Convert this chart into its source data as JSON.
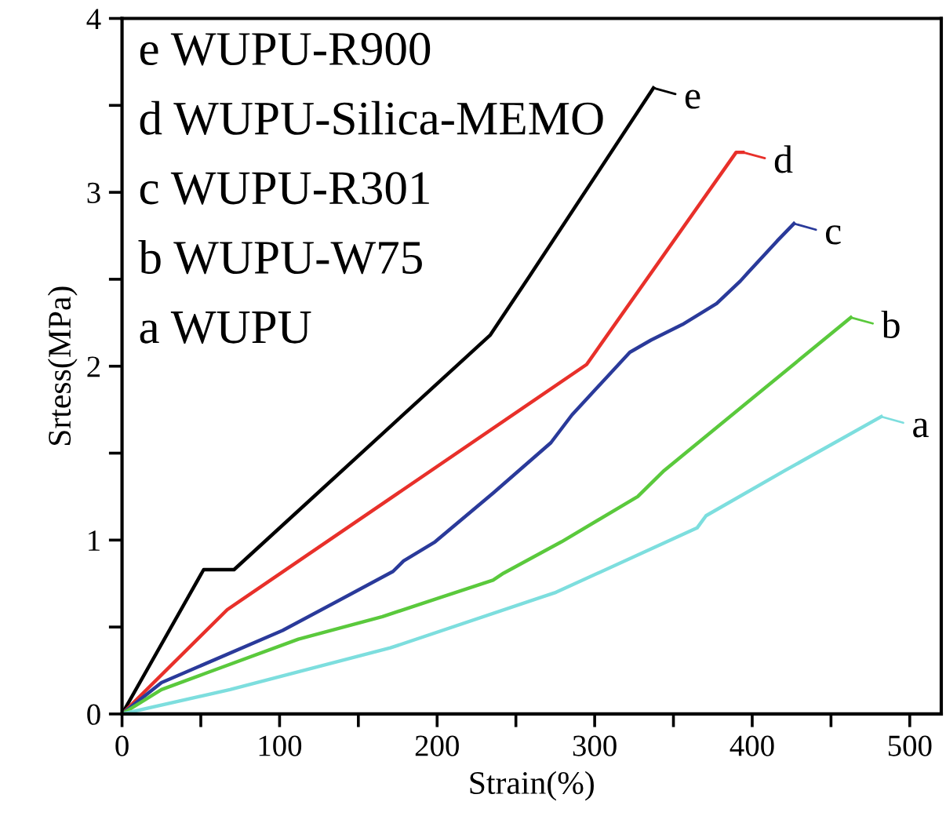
{
  "chart_data": {
    "type": "line",
    "xlabel": "Strain(%)",
    "ylabel": "Srtess(MPa)",
    "xlim": [
      0,
      520
    ],
    "ylim": [
      0,
      4
    ],
    "xticks": [
      0,
      {
        "value": 50,
        "label": null
      },
      100,
      {
        "value": 150,
        "label": null
      },
      200,
      {
        "value": 250,
        "label": null
      },
      300,
      {
        "value": 350,
        "label": null
      },
      400,
      {
        "value": 450,
        "label": null
      },
      500
    ],
    "yticks": [
      0,
      {
        "value": 0.5,
        "label": null
      },
      1,
      {
        "value": 1.5,
        "label": null
      },
      2,
      {
        "value": 2.5,
        "label": null
      },
      3,
      {
        "value": 3.5,
        "label": null
      },
      4
    ],
    "grid": false,
    "legend": "right",
    "marker": "none",
    "line_style": "solid",
    "annotations": [
      "e WUPU-R900",
      "d WUPU-Silica-MEMO",
      "c WUPU-R301",
      "b WUPU-W75",
      "a WUPU"
    ],
    "series": [
      {
        "name": "e",
        "color": "#000000",
        "x": [
          0,
          51.8,
          71.1,
          233.8,
          258.8,
          337.3
        ],
        "values": [
          0,
          0.83,
          0.83,
          2.18,
          2.52,
          3.6
        ]
      },
      {
        "name": "d",
        "color": "#e8302a",
        "x": [
          0,
          66.8,
          294.9,
          389.8,
          394.1
        ],
        "values": [
          0,
          0.6,
          2.01,
          3.23,
          3.23
        ]
      },
      {
        "name": "c",
        "color": "#2a3a9a",
        "x": [
          0,
          25,
          101.9,
          145.3,
          172,
          178.7,
          198.7,
          235.5,
          272.2,
          285.6,
          322.3,
          335.7,
          355.7,
          377.4,
          392.5,
          397.5,
          415.8,
          426.5
        ],
        "values": [
          0,
          0.18,
          0.48,
          0.69,
          0.82,
          0.88,
          0.99,
          1.27,
          1.56,
          1.72,
          2.08,
          2.15,
          2.24,
          2.36,
          2.49,
          2.54,
          2.72,
          2.82
        ]
      },
      {
        "name": "b",
        "color": "#5ac93c",
        "x": [
          0,
          25,
          51.8,
          111.9,
          165.3,
          235.5,
          242.2,
          278.9,
          327.3,
          344.1,
          462.6
        ],
        "values": [
          0,
          0.14,
          0.23,
          0.43,
          0.56,
          0.77,
          0.81,
          0.99,
          1.25,
          1.4,
          2.28
        ]
      },
      {
        "name": "a",
        "color": "#7ddede",
        "x": [
          0,
          68.5,
          170.3,
          275.5,
          365,
          370.7,
          420.8,
          481.9
        ],
        "values": [
          0,
          0.14,
          0.38,
          0.7,
          1.07,
          1.14,
          1.4,
          1.71
        ]
      }
    ]
  }
}
